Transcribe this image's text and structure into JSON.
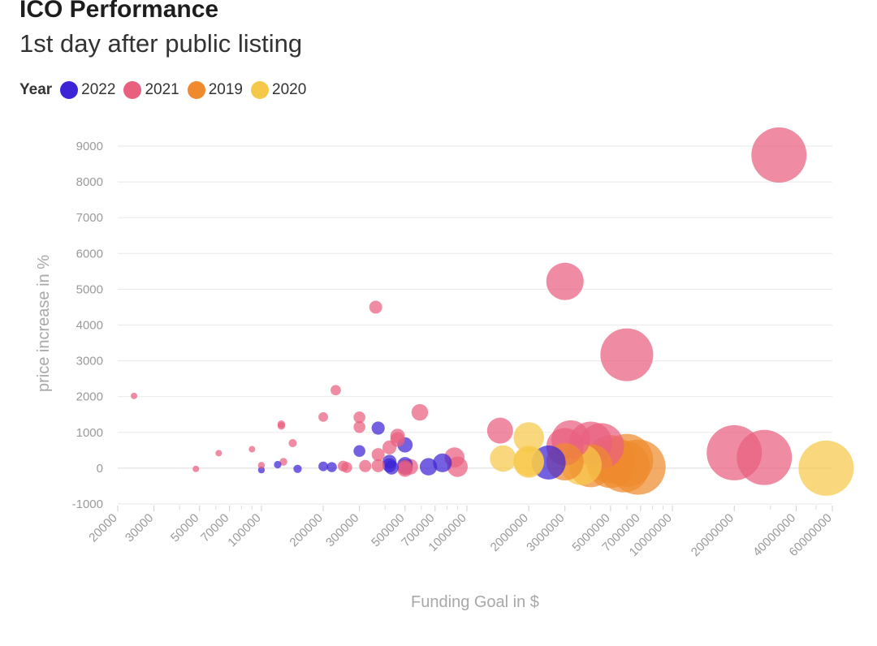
{
  "header": {
    "title": "ICO Performance",
    "subtitle": "1st day after public listing"
  },
  "legend": {
    "title": "Year",
    "items": [
      {
        "label": "2022",
        "color": "#3d24d6"
      },
      {
        "label": "2021",
        "color": "#e9607f"
      },
      {
        "label": "2019",
        "color": "#ef8a2e"
      },
      {
        "label": "2020",
        "color": "#f6c84a"
      }
    ]
  },
  "chart_data": {
    "type": "scatter",
    "title": "ICO Performance",
    "subtitle": "1st day after public listing",
    "xlabel": "Funding Goal in $",
    "ylabel": "price increase in %",
    "x_scale": "log",
    "xlim": [
      20000,
      60000000
    ],
    "ylim": [
      -1000,
      9000
    ],
    "x_ticks": [
      20000,
      30000,
      50000,
      70000,
      100000,
      200000,
      300000,
      500000,
      700000,
      1000000,
      2000000,
      3000000,
      5000000,
      7000000,
      10000000,
      20000000,
      40000000,
      60000000
    ],
    "x_tick_labels": [
      "20000",
      "30000",
      "50000",
      "70000",
      "100000",
      "200000",
      "300000",
      "500000",
      "700000",
      "1000000",
      "2000000",
      "3000000",
      "5000000",
      "7000000",
      "10000000",
      "20000000",
      "40000000",
      "60000000"
    ],
    "y_ticks": [
      -1000,
      0,
      1000,
      2000,
      3000,
      4000,
      5000,
      6000,
      7000,
      8000,
      9000
    ],
    "y_tick_labels": [
      "-1000",
      "0",
      "1000",
      "2000",
      "3000",
      "4000",
      "5000",
      "6000",
      "7000",
      "8000",
      "9000"
    ],
    "grid": "horizontal",
    "bubble_size": "funding goal",
    "series": [
      {
        "name": "2022",
        "color": "#3d24d6",
        "points": [
          {
            "x": 100000,
            "y": -50
          },
          {
            "x": 120000,
            "y": 100
          },
          {
            "x": 150000,
            "y": -20
          },
          {
            "x": 200000,
            "y": 50
          },
          {
            "x": 220000,
            "y": 30
          },
          {
            "x": 300000,
            "y": 480
          },
          {
            "x": 370000,
            "y": 1120
          },
          {
            "x": 420000,
            "y": 180
          },
          {
            "x": 420000,
            "y": 80
          },
          {
            "x": 430000,
            "y": 20
          },
          {
            "x": 500000,
            "y": 650
          },
          {
            "x": 500000,
            "y": 100
          },
          {
            "x": 500000,
            "y": 30
          },
          {
            "x": 650000,
            "y": 40
          },
          {
            "x": 760000,
            "y": 150
          },
          {
            "x": 2500000,
            "y": 160
          }
        ]
      },
      {
        "name": "2021",
        "color": "#e9607f",
        "points": [
          {
            "x": 24000,
            "y": 2020
          },
          {
            "x": 48000,
            "y": -20
          },
          {
            "x": 62000,
            "y": 420
          },
          {
            "x": 90000,
            "y": 530
          },
          {
            "x": 100000,
            "y": 80
          },
          {
            "x": 125000,
            "y": 1230
          },
          {
            "x": 125000,
            "y": 1180
          },
          {
            "x": 128000,
            "y": 180
          },
          {
            "x": 142000,
            "y": 700
          },
          {
            "x": 200000,
            "y": 1430
          },
          {
            "x": 230000,
            "y": 2180
          },
          {
            "x": 250000,
            "y": 60
          },
          {
            "x": 260000,
            "y": 20
          },
          {
            "x": 300000,
            "y": 1420
          },
          {
            "x": 300000,
            "y": 1150
          },
          {
            "x": 320000,
            "y": 60
          },
          {
            "x": 360000,
            "y": 4500
          },
          {
            "x": 370000,
            "y": 380
          },
          {
            "x": 370000,
            "y": 70
          },
          {
            "x": 420000,
            "y": 580
          },
          {
            "x": 460000,
            "y": 900
          },
          {
            "x": 460000,
            "y": 800
          },
          {
            "x": 500000,
            "y": 20
          },
          {
            "x": 500000,
            "y": -30
          },
          {
            "x": 530000,
            "y": 40
          },
          {
            "x": 590000,
            "y": 1560
          },
          {
            "x": 870000,
            "y": 300
          },
          {
            "x": 900000,
            "y": 40
          },
          {
            "x": 1450000,
            "y": 1050
          },
          {
            "x": 3000000,
            "y": 5220
          },
          {
            "x": 3000000,
            "y": 600
          },
          {
            "x": 3200000,
            "y": 800
          },
          {
            "x": 4000000,
            "y": 700
          },
          {
            "x": 4500000,
            "y": 620
          },
          {
            "x": 6000000,
            "y": 3170
          },
          {
            "x": 20000000,
            "y": 430
          },
          {
            "x": 28000000,
            "y": 300
          },
          {
            "x": 33000000,
            "y": 8750
          }
        ]
      },
      {
        "name": "2019",
        "color": "#ef8a2e",
        "points": [
          {
            "x": 3000000,
            "y": 180
          },
          {
            "x": 4000000,
            "y": 70
          },
          {
            "x": 5000000,
            "y": 250
          },
          {
            "x": 5000000,
            "y": 120
          },
          {
            "x": 5800000,
            "y": 50
          },
          {
            "x": 6000000,
            "y": 220
          },
          {
            "x": 6800000,
            "y": 30
          }
        ]
      },
      {
        "name": "2020",
        "color": "#f6c84a",
        "points": [
          {
            "x": 1500000,
            "y": 270
          },
          {
            "x": 2000000,
            "y": 860
          },
          {
            "x": 2000000,
            "y": 200
          },
          {
            "x": 2000000,
            "y": 160
          },
          {
            "x": 3600000,
            "y": 100
          },
          {
            "x": 56000000,
            "y": 0
          }
        ]
      }
    ]
  }
}
